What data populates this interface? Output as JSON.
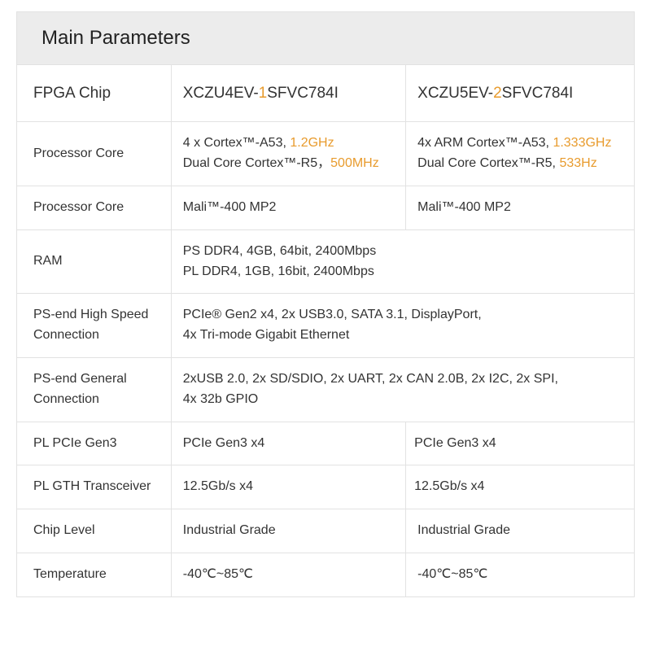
{
  "title": "Main Parameters",
  "accent_color": "#e89b2d",
  "header_bg": "#ececec",
  "border_color": "#e2e2e2",
  "columns": {
    "label": "FPGA Chip",
    "col1": {
      "pre": "XCZU4EV-",
      "hl": "1",
      "post": "SFVC784I"
    },
    "col2": {
      "pre": "XCZU5EV-",
      "hl": "2",
      "post": "SFVC784I"
    }
  },
  "rows": {
    "proc1": {
      "label": "Processor Core",
      "c1_l1a": "4 x Cortex™-A53, ",
      "c1_l1b": "1.2GHz",
      "c1_l2a": "Dual Core  Cortex™-R5，",
      "c1_l2b": "500MHz",
      "c2_l1a": "4x  ARM Cortex™-A53, ",
      "c2_l1b": "1.333GHz",
      "c2_l2a": "Dual Core Cortex™-R5, ",
      "c2_l2b": "533Hz"
    },
    "proc2": {
      "label": "Processor Core",
      "c1": "Mali™-400 MP2",
      "c2": "Mali™-400 MP2"
    },
    "ram": {
      "label": "RAM",
      "l1": "PS DDR4, 4GB, 64bit, 2400Mbps",
      "l2": "PL DDR4, 1GB, 16bit, 2400Mbps"
    },
    "pshs": {
      "label": "PS-end High Speed Connection",
      "l1": "PCIe® Gen2 x4, 2x USB3.0, SATA 3.1, DisplayPort,",
      "l2": " 4x Tri-mode Gigabit Ethernet"
    },
    "psg": {
      "label": "PS-end General Connection",
      "l1": "2xUSB 2.0, 2x SD/SDIO, 2x UART, 2x CAN 2.0B, 2x I2C, 2x SPI,",
      "l2": "4x 32b GPIO"
    },
    "pcie": {
      "label": "PL PCIe Gen3",
      "c1": "PCIe Gen3 x4",
      "c2": "PCIe Gen3 x4"
    },
    "gth": {
      "label": "PL GTH Transceiver",
      "c1": "12.5Gb/s x4",
      "c2": "12.5Gb/s x4"
    },
    "chip": {
      "label": "Chip Level",
      "c1": " Industrial Grade",
      "c2": "Industrial Grade"
    },
    "temp": {
      "label": "Temperature",
      "c1": "-40℃~85℃",
      "c2": "-40℃~85℃"
    }
  }
}
